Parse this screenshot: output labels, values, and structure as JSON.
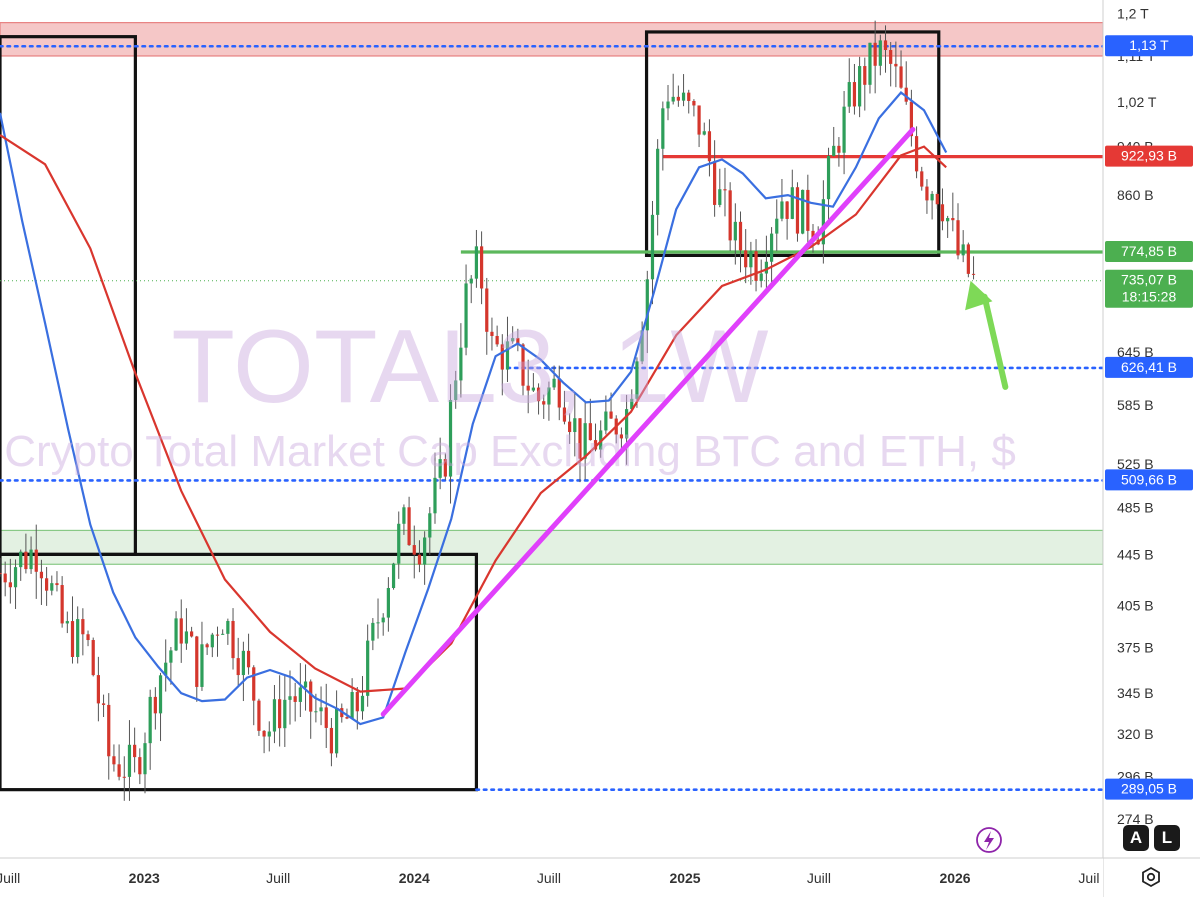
{
  "chart_data": {
    "type": "candlestick",
    "watermark": {
      "symbol": "TOTAL3, 1W",
      "description": "Crypto Total Market Cap Excluding BTC and ETH, $"
    },
    "y_axis": {
      "scale": "log",
      "range_billions": [
        255,
        1230
      ],
      "ticks": [
        {
          "label": "1,2 T",
          "value": 1200
        },
        {
          "label": "1,11 T",
          "value": 1110
        },
        {
          "label": "1,02 T",
          "value": 1020
        },
        {
          "label": "940 B",
          "value": 940
        },
        {
          "label": "860 B",
          "value": 860
        },
        {
          "label": "645 B",
          "value": 645
        },
        {
          "label": "585 B",
          "value": 585
        },
        {
          "label": "525 B",
          "value": 525
        },
        {
          "label": "485 B",
          "value": 485
        },
        {
          "label": "445 B",
          "value": 445
        },
        {
          "label": "405 B",
          "value": 405
        },
        {
          "label": "375 B",
          "value": 375
        },
        {
          "label": "345 B",
          "value": 345
        },
        {
          "label": "320 B",
          "value": 320
        },
        {
          "label": "296 B",
          "value": 296
        },
        {
          "label": "274 B",
          "value": 274
        }
      ]
    },
    "x_axis": {
      "range": [
        "2022-06-20",
        "2026-07-20"
      ],
      "ticks": [
        {
          "label": "Juill",
          "date": "2022-07-01"
        },
        {
          "label": "2023",
          "date": "2023-01-01"
        },
        {
          "label": "Juill",
          "date": "2023-07-01"
        },
        {
          "label": "2024",
          "date": "2024-01-01"
        },
        {
          "label": "Juill",
          "date": "2024-07-01"
        },
        {
          "label": "2025",
          "date": "2025-01-01"
        },
        {
          "label": "Juill",
          "date": "2025-07-01"
        },
        {
          "label": "2026",
          "date": "2026-01-01"
        },
        {
          "label": "Juil",
          "date": "2026-07-01"
        }
      ]
    },
    "price_labels": [
      {
        "label": "1,13 T",
        "value": 1130,
        "color": "#2962ff"
      },
      {
        "label": "922,93 B",
        "value": 922.93,
        "color": "#e53935"
      },
      {
        "label": "774,85 B",
        "value": 774.85,
        "color": "#4caf50"
      },
      {
        "label": "735,07 B",
        "value": 735.07,
        "color": "#4caf50",
        "sublabel": "18:15:28"
      },
      {
        "label": "626,41 B",
        "value": 626.41,
        "color": "#2962ff"
      },
      {
        "label": "509,66 B",
        "value": 509.66,
        "color": "#2962ff"
      },
      {
        "label": "289,05 B",
        "value": 289.05,
        "color": "#2962ff"
      }
    ],
    "current_price": 735.07,
    "bar_countdown": "18:15:28",
    "horizontal_levels": [
      {
        "value": 1130,
        "style": "dotted",
        "color": "#2962ff",
        "from": "2022-06-20"
      },
      {
        "value": 922.93,
        "style": "solid",
        "color": "#e53935",
        "from": "2024-12-02"
      },
      {
        "value": 774.85,
        "style": "solid",
        "color": "#5cb85c",
        "from": "2024-03-04"
      },
      {
        "value": 626.41,
        "style": "dotted",
        "color": "#2962ff",
        "from": "2024-05-06"
      },
      {
        "value": 509.66,
        "style": "dotted",
        "color": "#2962ff",
        "from": "2022-06-20"
      },
      {
        "value": 289.05,
        "style": "dotted",
        "color": "#2962ff",
        "from": "2024-03-25"
      }
    ],
    "zones": [
      {
        "from_value": 1110,
        "to_value": 1180,
        "fill": "#f4c2c2",
        "stroke": "#e57373"
      },
      {
        "from_value": 437,
        "to_value": 465,
        "fill": "#e0f0df",
        "stroke": "#7cc47a"
      }
    ],
    "rectangles": [
      {
        "from": "2022-06-20",
        "to": "2022-12-20",
        "top": 1150,
        "bottom": 445
      },
      {
        "from": "2022-06-20",
        "to": "2024-03-25",
        "top": 445,
        "bottom": 289.05
      },
      {
        "from": "2024-11-10",
        "to": "2025-12-10",
        "top": 1160,
        "bottom": 770
      }
    ],
    "trendline": {
      "color": "#e040fb",
      "points": [
        {
          "date": "2023-11-20",
          "value": 332
        },
        {
          "date": "2025-11-05",
          "value": 970
        }
      ]
    },
    "annotation_arrow": {
      "color": "#7ed957",
      "from": {
        "date": "2026-03-10",
        "value": 605
      },
      "to": {
        "date": "2026-01-22",
        "value": 735
      }
    },
    "moving_averages": [
      {
        "name": "fast",
        "color": "#3a6fe0",
        "points": [
          [
            "2022-06-20",
            1000
          ],
          [
            "2022-07-20",
            820
          ],
          [
            "2022-08-20",
            680
          ],
          [
            "2022-09-20",
            560
          ],
          [
            "2022-10-20",
            470
          ],
          [
            "2022-11-20",
            415
          ],
          [
            "2022-12-20",
            382
          ],
          [
            "2023-01-20",
            362
          ],
          [
            "2023-02-20",
            345
          ],
          [
            "2023-03-20",
            340
          ],
          [
            "2023-04-20",
            341
          ],
          [
            "2023-05-20",
            355
          ],
          [
            "2023-06-20",
            360
          ],
          [
            "2023-07-20",
            355
          ],
          [
            "2023-08-20",
            342
          ],
          [
            "2023-09-20",
            335
          ],
          [
            "2023-10-20",
            326
          ],
          [
            "2023-11-20",
            330
          ],
          [
            "2023-12-20",
            372
          ],
          [
            "2024-01-20",
            418
          ],
          [
            "2024-02-20",
            475
          ],
          [
            "2024-03-20",
            565
          ],
          [
            "2024-04-20",
            640
          ],
          [
            "2024-05-20",
            655
          ],
          [
            "2024-06-20",
            636
          ],
          [
            "2024-07-20",
            610
          ],
          [
            "2024-08-20",
            588
          ],
          [
            "2024-09-20",
            590
          ],
          [
            "2024-10-20",
            622
          ],
          [
            "2024-11-20",
            720
          ],
          [
            "2024-12-20",
            838
          ],
          [
            "2025-01-20",
            905
          ],
          [
            "2025-02-20",
            918
          ],
          [
            "2025-03-20",
            895
          ],
          [
            "2025-04-20",
            855
          ],
          [
            "2025-05-20",
            860
          ],
          [
            "2025-06-20",
            848
          ],
          [
            "2025-07-20",
            842
          ],
          [
            "2025-08-20",
            905
          ],
          [
            "2025-09-20",
            990
          ],
          [
            "2025-10-20",
            1038
          ],
          [
            "2025-11-20",
            1005
          ],
          [
            "2025-12-20",
            930
          ]
        ]
      },
      {
        "name": "slow",
        "color": "#d9362e",
        "points": [
          [
            "2022-06-20",
            960
          ],
          [
            "2022-08-20",
            910
          ],
          [
            "2022-10-20",
            780
          ],
          [
            "2022-12-20",
            620
          ],
          [
            "2023-02-20",
            500
          ],
          [
            "2023-04-20",
            425
          ],
          [
            "2023-06-20",
            386
          ],
          [
            "2023-08-20",
            361
          ],
          [
            "2023-10-20",
            346
          ],
          [
            "2023-12-20",
            348
          ],
          [
            "2024-02-20",
            378
          ],
          [
            "2024-04-20",
            440
          ],
          [
            "2024-06-20",
            498
          ],
          [
            "2024-08-20",
            533
          ],
          [
            "2024-10-20",
            578
          ],
          [
            "2024-12-20",
            665
          ],
          [
            "2025-02-20",
            728
          ],
          [
            "2025-04-20",
            750
          ],
          [
            "2025-06-20",
            782
          ],
          [
            "2025-08-20",
            830
          ],
          [
            "2025-10-20",
            925
          ],
          [
            "2025-11-20",
            940
          ],
          [
            "2025-12-20",
            905
          ]
        ]
      }
    ]
  },
  "ui": {
    "settings_icon": "hexagon-gear-icon",
    "lightning_icon": "lightning-icon",
    "auto_label": "A",
    "log_label": "L"
  }
}
